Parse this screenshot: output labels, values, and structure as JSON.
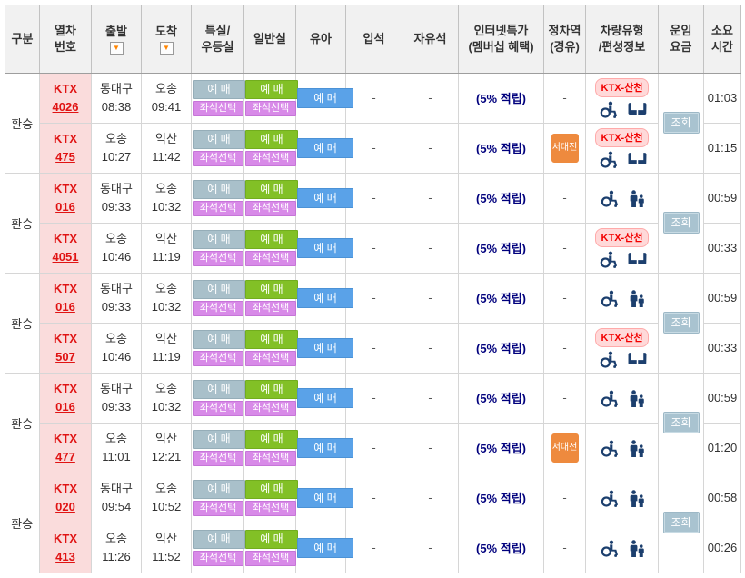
{
  "table": {
    "headers": {
      "gubun": "구분",
      "train_no": "열차\n번호",
      "depart": "출발",
      "arrive": "도착",
      "first_class": "특실/\n우등실",
      "standard": "일반실",
      "infant": "유아",
      "standing": "입석",
      "free_seat": "자유석",
      "internet_deal": "인터넷특가\n(멤버십 혜택)",
      "stops": "정차역\n(경유)",
      "vehicle": "차량유형\n/편성정보",
      "fare": "운임\n요금",
      "duration": "소요\n시간"
    },
    "buttons": {
      "reserve": "예 매",
      "seat_select": "좌석선택",
      "lookup": "조회"
    },
    "icons": {
      "sort_glyph": "▼"
    },
    "blocks": [
      {
        "transfer_label": "환승",
        "trains": [
          {
            "train_type": "KTX",
            "train_no": "4026",
            "dep_station": "동대구",
            "dep_time": "08:38",
            "arr_station": "오송",
            "arr_time": "09:41",
            "standing": "-",
            "free_seat": "-",
            "internet_deal": "(5% 적립)",
            "stop_text": "-",
            "vehicle_badge": "KTX-산천",
            "icons": [
              "wheelchair",
              "facing-seats"
            ],
            "duration": "01:03"
          },
          {
            "train_type": "KTX",
            "train_no": "475",
            "dep_station": "오송",
            "dep_time": "10:27",
            "arr_station": "익산",
            "arr_time": "11:42",
            "standing": "-",
            "free_seat": "-",
            "internet_deal": "(5% 적립)",
            "stop_badge": "서대전",
            "vehicle_badge": "KTX-산천",
            "icons": [
              "wheelchair",
              "facing-seats"
            ],
            "duration": "01:15"
          }
        ]
      },
      {
        "transfer_label": "환승",
        "trains": [
          {
            "train_type": "KTX",
            "train_no": "016",
            "dep_station": "동대구",
            "dep_time": "09:33",
            "arr_station": "오송",
            "arr_time": "10:32",
            "standing": "-",
            "free_seat": "-",
            "internet_deal": "(5% 적립)",
            "stop_text": "-",
            "icons": [
              "wheelchair",
              "family"
            ],
            "duration": "00:59"
          },
          {
            "train_type": "KTX",
            "train_no": "4051",
            "dep_station": "오송",
            "dep_time": "10:46",
            "arr_station": "익산",
            "arr_time": "11:19",
            "standing": "-",
            "free_seat": "-",
            "internet_deal": "(5% 적립)",
            "stop_text": "-",
            "vehicle_badge": "KTX-산천",
            "icons": [
              "wheelchair",
              "facing-seats"
            ],
            "duration": "00:33"
          }
        ]
      },
      {
        "transfer_label": "환승",
        "trains": [
          {
            "train_type": "KTX",
            "train_no": "016",
            "dep_station": "동대구",
            "dep_time": "09:33",
            "arr_station": "오송",
            "arr_time": "10:32",
            "standing": "-",
            "free_seat": "-",
            "internet_deal": "(5% 적립)",
            "stop_text": "-",
            "icons": [
              "wheelchair",
              "family"
            ],
            "duration": "00:59"
          },
          {
            "train_type": "KTX",
            "train_no": "507",
            "dep_station": "오송",
            "dep_time": "10:46",
            "arr_station": "익산",
            "arr_time": "11:19",
            "standing": "-",
            "free_seat": "-",
            "internet_deal": "(5% 적립)",
            "stop_text": "-",
            "vehicle_badge": "KTX-산천",
            "icons": [
              "wheelchair",
              "facing-seats"
            ],
            "duration": "00:33"
          }
        ]
      },
      {
        "transfer_label": "환승",
        "trains": [
          {
            "train_type": "KTX",
            "train_no": "016",
            "dep_station": "동대구",
            "dep_time": "09:33",
            "arr_station": "오송",
            "arr_time": "10:32",
            "standing": "-",
            "free_seat": "-",
            "internet_deal": "(5% 적립)",
            "stop_text": "-",
            "icons": [
              "wheelchair",
              "family"
            ],
            "duration": "00:59"
          },
          {
            "train_type": "KTX",
            "train_no": "477",
            "dep_station": "오송",
            "dep_time": "11:01",
            "arr_station": "익산",
            "arr_time": "12:21",
            "standing": "-",
            "free_seat": "-",
            "internet_deal": "(5% 적립)",
            "stop_badge": "서대전",
            "icons": [
              "wheelchair",
              "family"
            ],
            "duration": "01:20"
          }
        ]
      },
      {
        "transfer_label": "환승",
        "trains": [
          {
            "train_type": "KTX",
            "train_no": "020",
            "dep_station": "동대구",
            "dep_time": "09:54",
            "arr_station": "오송",
            "arr_time": "10:52",
            "standing": "-",
            "free_seat": "-",
            "internet_deal": "(5% 적립)",
            "stop_text": "-",
            "icons": [
              "wheelchair",
              "family"
            ],
            "duration": "00:58"
          },
          {
            "train_type": "KTX",
            "train_no": "413",
            "dep_station": "오송",
            "dep_time": "11:26",
            "arr_station": "익산",
            "arr_time": "11:52",
            "standing": "-",
            "free_seat": "-",
            "internet_deal": "(5% 적립)",
            "stop_text": "-",
            "icons": [
              "wheelchair",
              "family"
            ],
            "duration": "00:26"
          }
        ]
      }
    ]
  },
  "colors": {
    "header_bg": "#f1f1f1",
    "train_cell_bg": "#fadcdc",
    "train_text": "#e01313",
    "first_class_btn": "#a9c0ca",
    "standard_btn": "#82c026",
    "seat_select_btn": "#d88ae8",
    "infant_btn": "#5aa2e8",
    "deal_text": "#00007d",
    "stop_badge_bg": "#ee8a3e",
    "sancheon_badge_bg": "#ffd9d9",
    "sancheon_badge_text": "#f20000",
    "vehicle_icon": "#1c3f6e",
    "lookup_btn_bg": "#a9c3d0"
  }
}
